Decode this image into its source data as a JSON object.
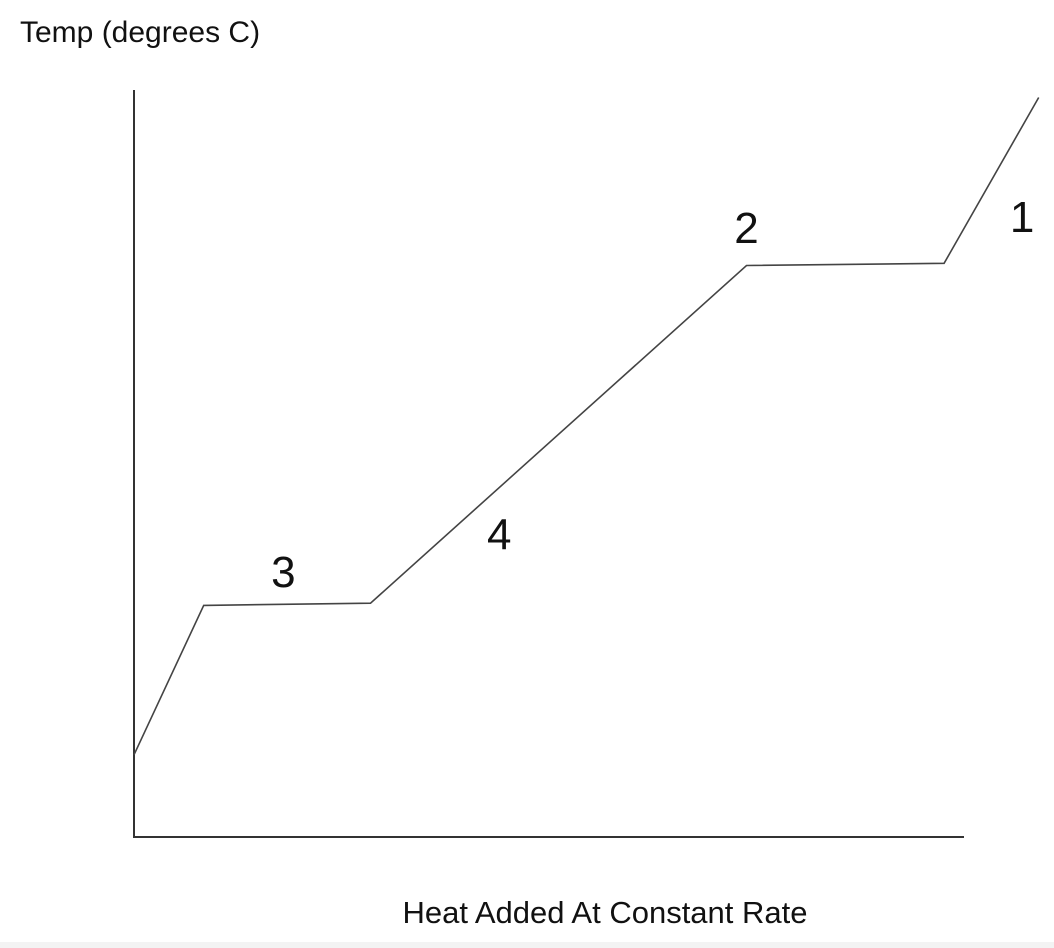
{
  "chart_data": {
    "type": "line",
    "title": "",
    "ylabel": "Temp (degrees C)",
    "xlabel": "Heat Added At Constant Rate",
    "grid": false,
    "legend": "none",
    "x": [
      0,
      0.084,
      0.285,
      0.738,
      0.976,
      1.09
    ],
    "y": [
      0.11,
      0.31,
      0.313,
      0.765,
      0.768,
      0.99
    ],
    "xlim": [
      0,
      1
    ],
    "ylim": [
      0,
      1
    ],
    "annotations": [
      {
        "text": "1",
        "x": 1.07,
        "y": 0.83
      },
      {
        "text": "2",
        "x": 0.738,
        "y": 0.815
      },
      {
        "text": "3",
        "x": 0.18,
        "y": 0.355
      },
      {
        "text": "4",
        "x": 0.44,
        "y": 0.405
      }
    ],
    "colors": {
      "line": "#444444",
      "axes": "#333333",
      "text": "#111111"
    }
  }
}
